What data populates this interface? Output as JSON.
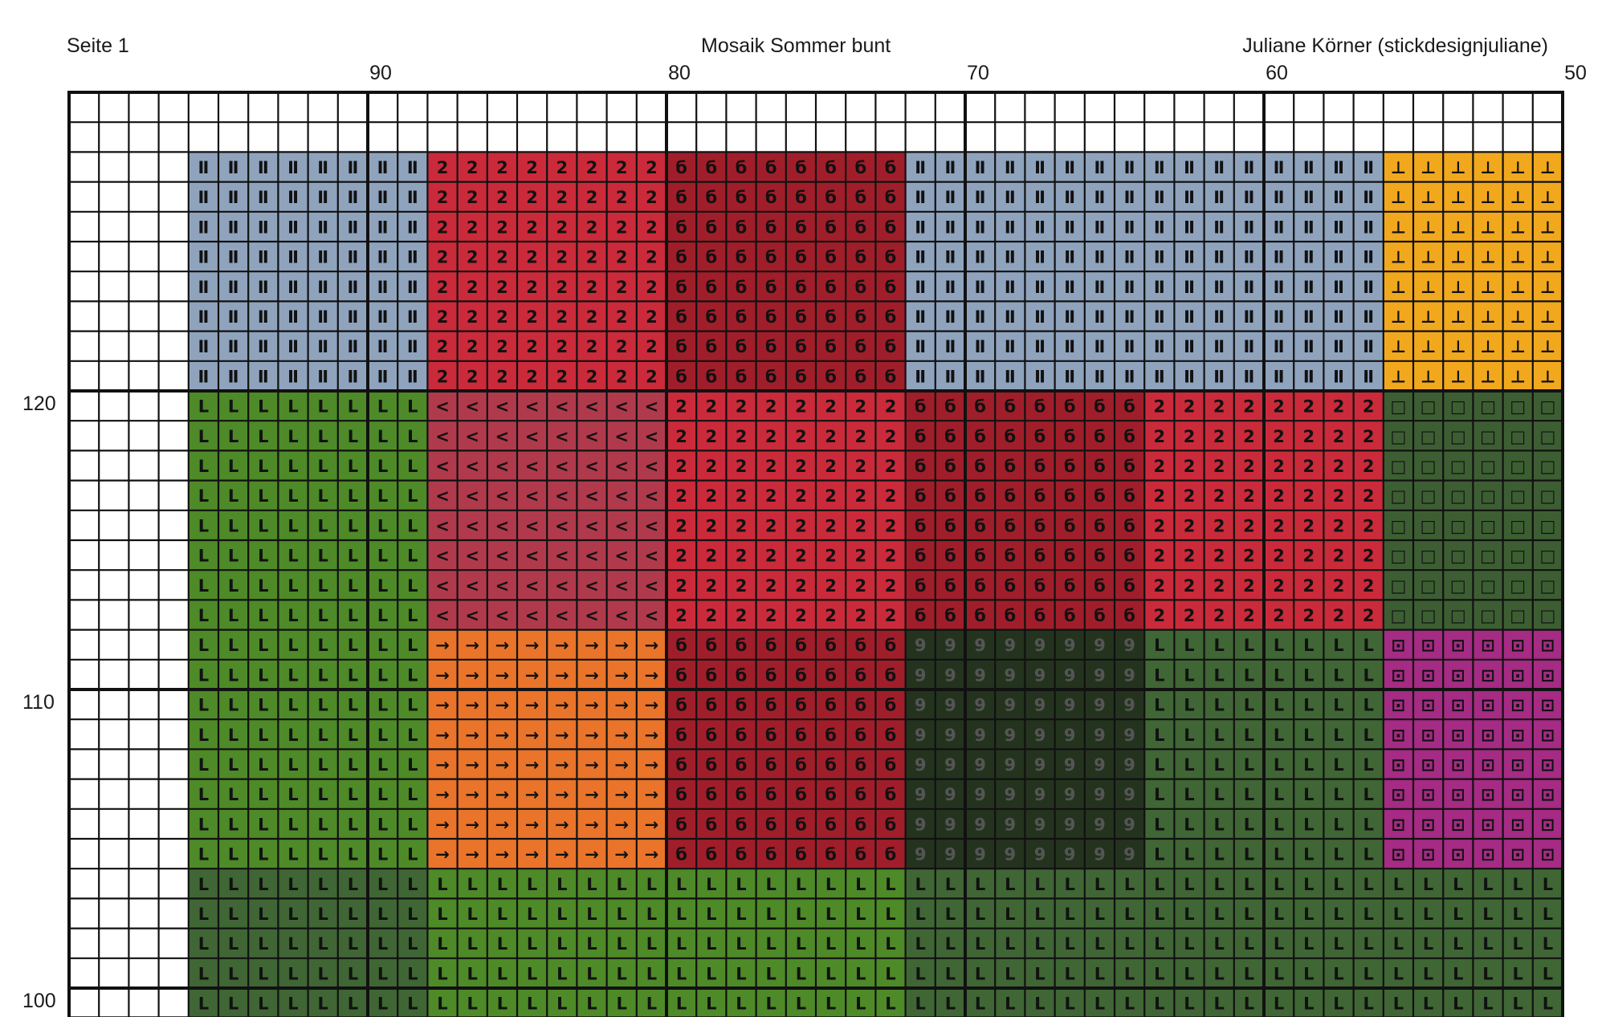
{
  "header": {
    "page_label": "Seite 1",
    "title": "Mosaik Sommer bunt",
    "author": "Juliane Körner (stickdesignjuliane)"
  },
  "grid": {
    "columns": 50,
    "rows": 31,
    "column_labels": [
      "90",
      "80",
      "70",
      "60",
      "50"
    ],
    "row_labels": [
      "120",
      "110",
      "100"
    ],
    "grid_color": "#111111",
    "blocks": [
      {
        "c0": 4,
        "c1": 12,
        "r0": 2,
        "r1": 10,
        "color": "#8fa3bd",
        "symbol": "Ⅱ",
        "ink": "#111111"
      },
      {
        "c0": 12,
        "c1": 20,
        "r0": 2,
        "r1": 10,
        "color": "#cb2a3a",
        "symbol": "2",
        "ink": "#111111"
      },
      {
        "c0": 20,
        "c1": 28,
        "r0": 2,
        "r1": 10,
        "color": "#a01e2a",
        "symbol": "б",
        "ink": "#111111"
      },
      {
        "c0": 28,
        "c1": 44,
        "r0": 2,
        "r1": 10,
        "color": "#8fa3bd",
        "symbol": "Ⅱ",
        "ink": "#111111"
      },
      {
        "c0": 44,
        "c1": 50,
        "r0": 2,
        "r1": 10,
        "color": "#f2a81d",
        "symbol": "⊥",
        "ink": "#111111"
      },
      {
        "c0": 4,
        "c1": 12,
        "r0": 10,
        "r1": 26,
        "color": "#4e8a28",
        "symbol": "L",
        "ink": "#111111"
      },
      {
        "c0": 12,
        "c1": 20,
        "r0": 10,
        "r1": 18,
        "color": "#b03a4c",
        "symbol": "<",
        "ink": "#111111"
      },
      {
        "c0": 20,
        "c1": 28,
        "r0": 10,
        "r1": 18,
        "color": "#cb2a3a",
        "symbol": "2",
        "ink": "#111111"
      },
      {
        "c0": 28,
        "c1": 36,
        "r0": 10,
        "r1": 18,
        "color": "#a01e2a",
        "symbol": "б",
        "ink": "#111111"
      },
      {
        "c0": 36,
        "c1": 44,
        "r0": 10,
        "r1": 18,
        "color": "#cb2a3a",
        "symbol": "2",
        "ink": "#111111"
      },
      {
        "c0": 44,
        "c1": 50,
        "r0": 10,
        "r1": 18,
        "color": "#3d5e33",
        "symbol": "□",
        "ink": "#111111"
      },
      {
        "c0": 12,
        "c1": 20,
        "r0": 18,
        "r1": 26,
        "color": "#e9742a",
        "symbol": "→",
        "ink": "#111111"
      },
      {
        "c0": 20,
        "c1": 28,
        "r0": 18,
        "r1": 26,
        "color": "#a01e2a",
        "symbol": "б",
        "ink": "#111111"
      },
      {
        "c0": 28,
        "c1": 36,
        "r0": 18,
        "r1": 26,
        "color": "#24331e",
        "symbol": "9",
        "ink": "#555555"
      },
      {
        "c0": 36,
        "c1": 44,
        "r0": 18,
        "r1": 26,
        "color": "#3f6634",
        "symbol": "L",
        "ink": "#111111"
      },
      {
        "c0": 44,
        "c1": 50,
        "r0": 18,
        "r1": 26,
        "color": "#a52b84",
        "symbol": "⊡",
        "ink": "#111111"
      },
      {
        "c0": 4,
        "c1": 12,
        "r0": 26,
        "r1": 31,
        "color": "#3f6634",
        "symbol": "L",
        "ink": "#111111"
      },
      {
        "c0": 12,
        "c1": 28,
        "r0": 26,
        "r1": 31,
        "color": "#4e8a28",
        "symbol": "L",
        "ink": "#111111"
      },
      {
        "c0": 28,
        "c1": 50,
        "r0": 26,
        "r1": 31,
        "color": "#3f6634",
        "symbol": "L",
        "ink": "#111111"
      }
    ]
  }
}
